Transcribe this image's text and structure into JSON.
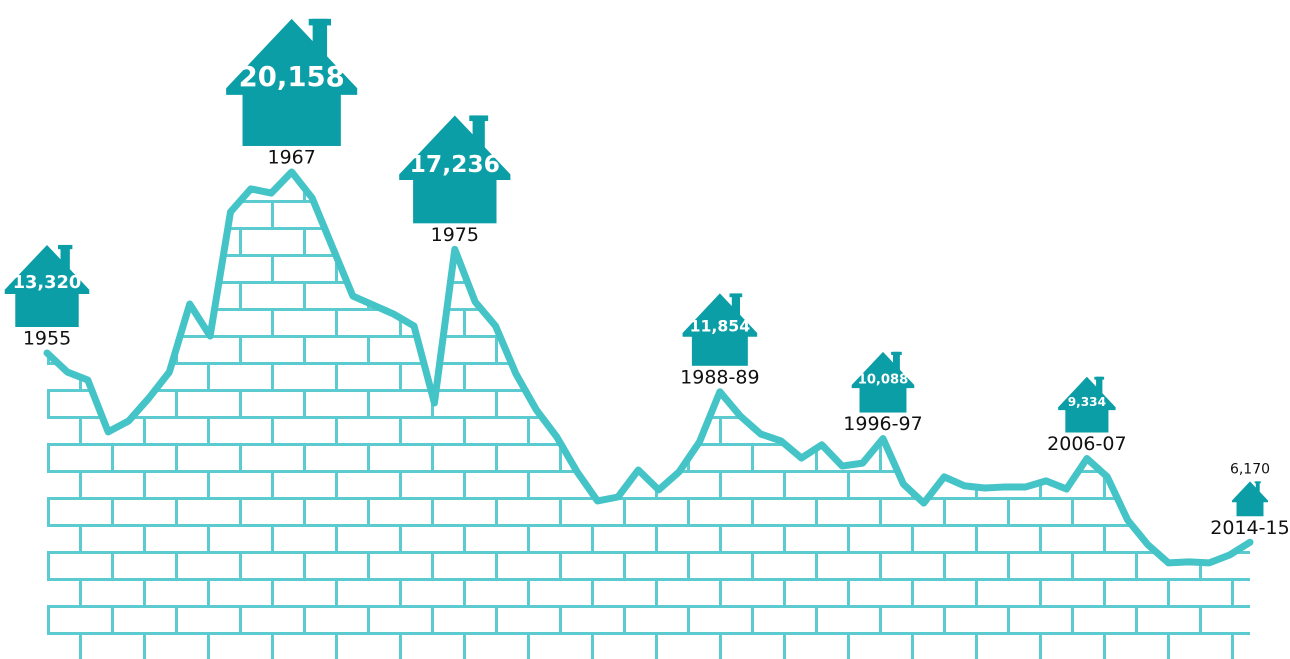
{
  "chart_data": {
    "type": "line",
    "categories": [
      "1955",
      null,
      null,
      null,
      null,
      null,
      null,
      null,
      null,
      null,
      null,
      null,
      "1967",
      null,
      null,
      null,
      null,
      null,
      null,
      null,
      "1975",
      null,
      null,
      null,
      null,
      null,
      null,
      null,
      null,
      null,
      null,
      null,
      null,
      "1988-89",
      null,
      null,
      null,
      null,
      null,
      null,
      null,
      "1996-97",
      null,
      null,
      null,
      null,
      null,
      null,
      null,
      null,
      null,
      "2006-07",
      null,
      null,
      null,
      null,
      null,
      null,
      null,
      "2014-15"
    ],
    "values": [
      13320,
      12600,
      12300,
      10340,
      10750,
      11620,
      12600,
      15170,
      13960,
      18650,
      19520,
      19360,
      20158,
      19180,
      17320,
      15470,
      15130,
      14790,
      14340,
      11430,
      17236,
      15250,
      14340,
      12530,
      11170,
      10150,
      8830,
      7730,
      7880,
      8900,
      8150,
      8830,
      9960,
      11854,
      10940,
      10260,
      10000,
      9350,
      9850,
      9050,
      9160,
      10088,
      8370,
      7650,
      8640,
      8300,
      8220,
      8260,
      8260,
      8490,
      8180,
      9334,
      8640,
      7010,
      6070,
      5390,
      5430,
      5390,
      5690,
      6170
    ],
    "value_labels": [
      "13,320",
      null,
      null,
      null,
      null,
      null,
      null,
      null,
      null,
      null,
      null,
      null,
      "20,158",
      null,
      null,
      null,
      null,
      null,
      null,
      null,
      "17,236",
      null,
      null,
      null,
      null,
      null,
      null,
      null,
      null,
      null,
      null,
      null,
      null,
      "11,854",
      null,
      null,
      null,
      null,
      null,
      null,
      null,
      "10,088",
      null,
      null,
      null,
      null,
      null,
      null,
      null,
      null,
      null,
      "9,334",
      null,
      null,
      null,
      null,
      null,
      null,
      null,
      "6,170"
    ],
    "color": "#45c4c8",
    "house_color": "#0b9ea6",
    "ylim": [
      0,
      25000
    ]
  }
}
